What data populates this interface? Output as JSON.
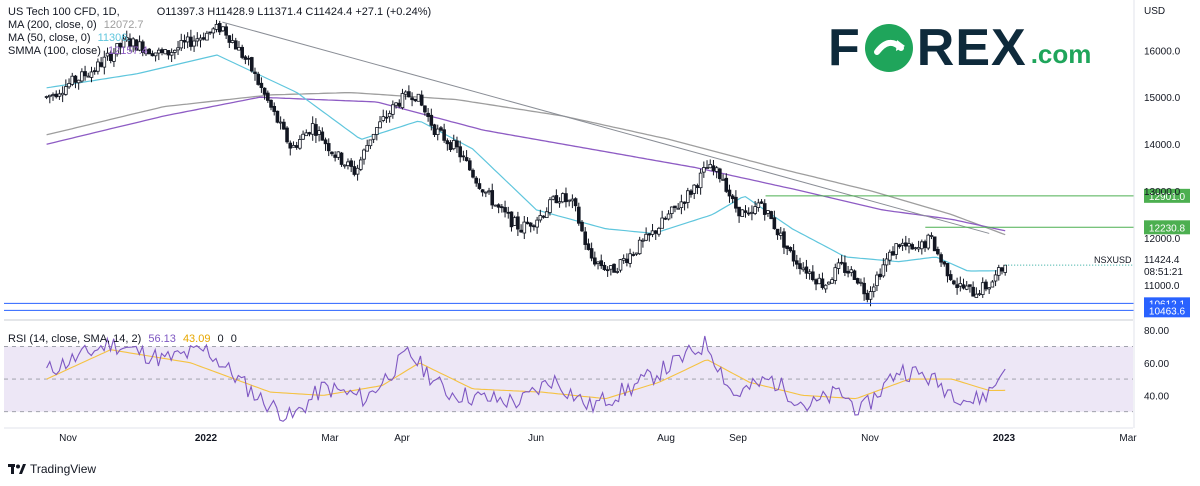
{
  "legend": {
    "symbol": "US Tech 100 CFD, 1D,",
    "ohlc": "O11397.3  H11428.9  L11371.4  C11424.4  +27.1 (+0.24%)",
    "ma200": "MA (200, close, 0)",
    "ma200_value": "12072.7",
    "ma50": "MA (50, close, 0)",
    "ma50_value": "11306.",
    "smma": "SMMA (100, close)",
    "smma_value": "12157.4",
    "rsi": "RSI (14, close, SMA, 14, 2)",
    "rsi_value": "56.13",
    "rsi_sma_value": "43.09",
    "rsi_zero1": "0",
    "rsi_zero2": "0"
  },
  "logo": {
    "text_before": "F",
    "text_after": "REX",
    "suffix": ".com"
  },
  "footer": {
    "brand": "TradingView"
  },
  "colors": {
    "up": "#26a69a",
    "down": "#131722",
    "ma200": "#9e9e9e",
    "ma50": "#5fc6dd",
    "smma": "#8e5cc4",
    "resistance": "#4caf50",
    "support": "#2962ff",
    "rsi": "#7e57c2",
    "rsi_sma": "#f5c242",
    "rsi_band": "#ede7f6",
    "logo_dark": "#0e2a3b",
    "logo_green": "#1fa55b"
  },
  "chart_data": [
    {
      "type": "candlestick",
      "title": "US Tech 100 CFD, 1D",
      "symbol": "NSXUSD",
      "currency": "USD",
      "x_ticks": [
        "Nov",
        "2022",
        "Mar",
        "Apr",
        "Jun",
        "Aug",
        "Sep",
        "Nov",
        "2023",
        "Mar"
      ],
      "y_ticks": [
        "16000.0",
        "15000.0",
        "14000.0",
        "13000.0",
        "12000.0",
        "11000.0"
      ],
      "ylim": [
        10300,
        16900
      ],
      "price_anchors": [
        {
          "month": 1.3,
          "price": 15000
        },
        {
          "month": 2.2,
          "price": 15600
        },
        {
          "month": 2.8,
          "price": 16200
        },
        {
          "month": 3.5,
          "price": 15900
        },
        {
          "month": 4.2,
          "price": 16300
        },
        {
          "month": 4.6,
          "price": 16500
        },
        {
          "month": 5.1,
          "price": 15700
        },
        {
          "month": 5.5,
          "price": 14800
        },
        {
          "month": 5.9,
          "price": 13900
        },
        {
          "month": 6.3,
          "price": 14400
        },
        {
          "month": 6.7,
          "price": 13800
        },
        {
          "month": 7.1,
          "price": 13400
        },
        {
          "month": 7.4,
          "price": 14200
        },
        {
          "month": 7.9,
          "price": 14900
        },
        {
          "month": 8.2,
          "price": 15100
        },
        {
          "month": 8.6,
          "price": 14300
        },
        {
          "month": 9.0,
          "price": 13900
        },
        {
          "month": 9.4,
          "price": 13200
        },
        {
          "month": 9.8,
          "price": 12600
        },
        {
          "month": 10.2,
          "price": 12200
        },
        {
          "month": 10.6,
          "price": 12500
        },
        {
          "month": 10.9,
          "price": 12900
        },
        {
          "month": 11.2,
          "price": 12700
        },
        {
          "month": 11.5,
          "price": 11600
        },
        {
          "month": 11.9,
          "price": 11300
        },
        {
          "month": 12.3,
          "price": 11700
        },
        {
          "month": 12.6,
          "price": 12000
        },
        {
          "month": 13.0,
          "price": 12500
        },
        {
          "month": 13.4,
          "price": 13000
        },
        {
          "month": 13.7,
          "price": 13500
        },
        {
          "month": 14.0,
          "price": 13300
        },
        {
          "month": 14.2,
          "price": 12700
        },
        {
          "month": 14.5,
          "price": 12400
        },
        {
          "month": 14.7,
          "price": 12800
        },
        {
          "month": 15.0,
          "price": 12200
        },
        {
          "month": 15.3,
          "price": 11600
        },
        {
          "month": 15.6,
          "price": 11300
        },
        {
          "month": 15.9,
          "price": 11000
        },
        {
          "month": 16.2,
          "price": 11400
        },
        {
          "month": 16.5,
          "price": 11200
        },
        {
          "month": 16.7,
          "price": 10800
        },
        {
          "month": 17.0,
          "price": 11400
        },
        {
          "month": 17.3,
          "price": 11900
        },
        {
          "month": 17.6,
          "price": 11700
        },
        {
          "month": 17.9,
          "price": 12000
        },
        {
          "month": 18.1,
          "price": 11500
        },
        {
          "month": 18.4,
          "price": 11000
        },
        {
          "month": 18.7,
          "price": 10850
        },
        {
          "month": 19.0,
          "price": 11000
        },
        {
          "month": 19.3,
          "price": 11424
        }
      ],
      "ma50_anchors": [
        {
          "month": 1.3,
          "price": 15200
        },
        {
          "month": 3.0,
          "price": 15500
        },
        {
          "month": 4.5,
          "price": 15900
        },
        {
          "month": 6.0,
          "price": 15100
        },
        {
          "month": 7.2,
          "price": 14100
        },
        {
          "month": 8.3,
          "price": 14500
        },
        {
          "month": 9.3,
          "price": 13900
        },
        {
          "month": 10.5,
          "price": 12600
        },
        {
          "month": 11.8,
          "price": 12200
        },
        {
          "month": 12.7,
          "price": 12100
        },
        {
          "month": 13.8,
          "price": 12500
        },
        {
          "month": 14.4,
          "price": 12900
        },
        {
          "month": 15.3,
          "price": 12200
        },
        {
          "month": 16.3,
          "price": 11600
        },
        {
          "month": 17.3,
          "price": 11500
        },
        {
          "month": 18.0,
          "price": 11600
        },
        {
          "month": 18.6,
          "price": 11300
        },
        {
          "month": 19.3,
          "price": 11306
        }
      ],
      "smma_anchors": [
        {
          "month": 1.3,
          "price": 14000
        },
        {
          "month": 3.5,
          "price": 14600
        },
        {
          "month": 5.3,
          "price": 15000
        },
        {
          "month": 7.5,
          "price": 14900
        },
        {
          "month": 9.5,
          "price": 14300
        },
        {
          "month": 11.5,
          "price": 13900
        },
        {
          "month": 13.5,
          "price": 13500
        },
        {
          "month": 15.5,
          "price": 13000
        },
        {
          "month": 17.0,
          "price": 12600
        },
        {
          "month": 18.3,
          "price": 12400
        },
        {
          "month": 19.3,
          "price": 12157
        }
      ],
      "ma200_anchors": [
        {
          "month": 1.3,
          "price": 14200
        },
        {
          "month": 3.5,
          "price": 14800
        },
        {
          "month": 5.5,
          "price": 15050
        },
        {
          "month": 7.0,
          "price": 15100
        },
        {
          "month": 9.0,
          "price": 14950
        },
        {
          "month": 11.0,
          "price": 14600
        },
        {
          "month": 13.0,
          "price": 14100
        },
        {
          "month": 15.0,
          "price": 13500
        },
        {
          "month": 16.8,
          "price": 13000
        },
        {
          "month": 18.3,
          "price": 12500
        },
        {
          "month": 19.3,
          "price": 12073
        }
      ],
      "trendlines": [
        {
          "from": {
            "month": 4.6,
            "price": 16600
          },
          "to": {
            "month": 19.0,
            "price": 12100
          }
        }
      ],
      "resistance_levels": [
        {
          "value": 12901.0,
          "label": "12901.0",
          "start_month": 14.8
        },
        {
          "value": 12230.8,
          "label": "12230.8",
          "start_month": 17.8
        }
      ],
      "support_levels": [
        {
          "value": 10612.1,
          "label": "10612.1"
        },
        {
          "value": 10463.6,
          "label": "10463.6"
        }
      ],
      "last_price": {
        "label": "NSXUSD",
        "value": "11424.4",
        "countdown": "08:51:21"
      }
    },
    {
      "type": "line",
      "title": "RSI (14, close, SMA, 14, 2)",
      "y_ticks": [
        "80.00",
        "60.00",
        "40.00"
      ],
      "ylim": [
        20,
        85
      ],
      "bands": {
        "upper": 70,
        "middle": 50,
        "lower": 30
      },
      "rsi_anchors": [
        {
          "month": 1.3,
          "value": 55
        },
        {
          "month": 2.5,
          "value": 72
        },
        {
          "month": 3.5,
          "value": 62
        },
        {
          "month": 4.3,
          "value": 68
        },
        {
          "month": 5.3,
          "value": 38
        },
        {
          "month": 5.9,
          "value": 26
        },
        {
          "month": 6.5,
          "value": 45
        },
        {
          "month": 7.3,
          "value": 38
        },
        {
          "month": 8.1,
          "value": 66
        },
        {
          "month": 8.8,
          "value": 42
        },
        {
          "month": 9.5,
          "value": 38
        },
        {
          "month": 10.2,
          "value": 36
        },
        {
          "month": 10.8,
          "value": 50
        },
        {
          "month": 11.5,
          "value": 33
        },
        {
          "month": 12.3,
          "value": 45
        },
        {
          "month": 13.0,
          "value": 58
        },
        {
          "month": 13.7,
          "value": 72
        },
        {
          "month": 14.2,
          "value": 40
        },
        {
          "month": 14.9,
          "value": 50
        },
        {
          "month": 15.6,
          "value": 33
        },
        {
          "month": 16.2,
          "value": 42
        },
        {
          "month": 16.6,
          "value": 30
        },
        {
          "month": 17.3,
          "value": 56
        },
        {
          "month": 17.8,
          "value": 52
        },
        {
          "month": 18.2,
          "value": 44
        },
        {
          "month": 18.7,
          "value": 36
        },
        {
          "month": 19.0,
          "value": 42
        },
        {
          "month": 19.3,
          "value": 56.13
        }
      ],
      "sma_anchors": [
        {
          "month": 1.3,
          "value": 50
        },
        {
          "month": 2.5,
          "value": 68
        },
        {
          "month": 4.0,
          "value": 60
        },
        {
          "month": 5.5,
          "value": 42
        },
        {
          "month": 6.5,
          "value": 40
        },
        {
          "month": 7.6,
          "value": 46
        },
        {
          "month": 8.3,
          "value": 60
        },
        {
          "month": 9.3,
          "value": 44
        },
        {
          "month": 10.6,
          "value": 42
        },
        {
          "month": 11.8,
          "value": 38
        },
        {
          "month": 12.8,
          "value": 48
        },
        {
          "month": 13.7,
          "value": 62
        },
        {
          "month": 14.5,
          "value": 48
        },
        {
          "month": 15.5,
          "value": 40
        },
        {
          "month": 16.5,
          "value": 38
        },
        {
          "month": 17.5,
          "value": 50
        },
        {
          "month": 18.3,
          "value": 50
        },
        {
          "month": 19.0,
          "value": 43
        },
        {
          "month": 19.3,
          "value": 43.09
        }
      ]
    }
  ]
}
